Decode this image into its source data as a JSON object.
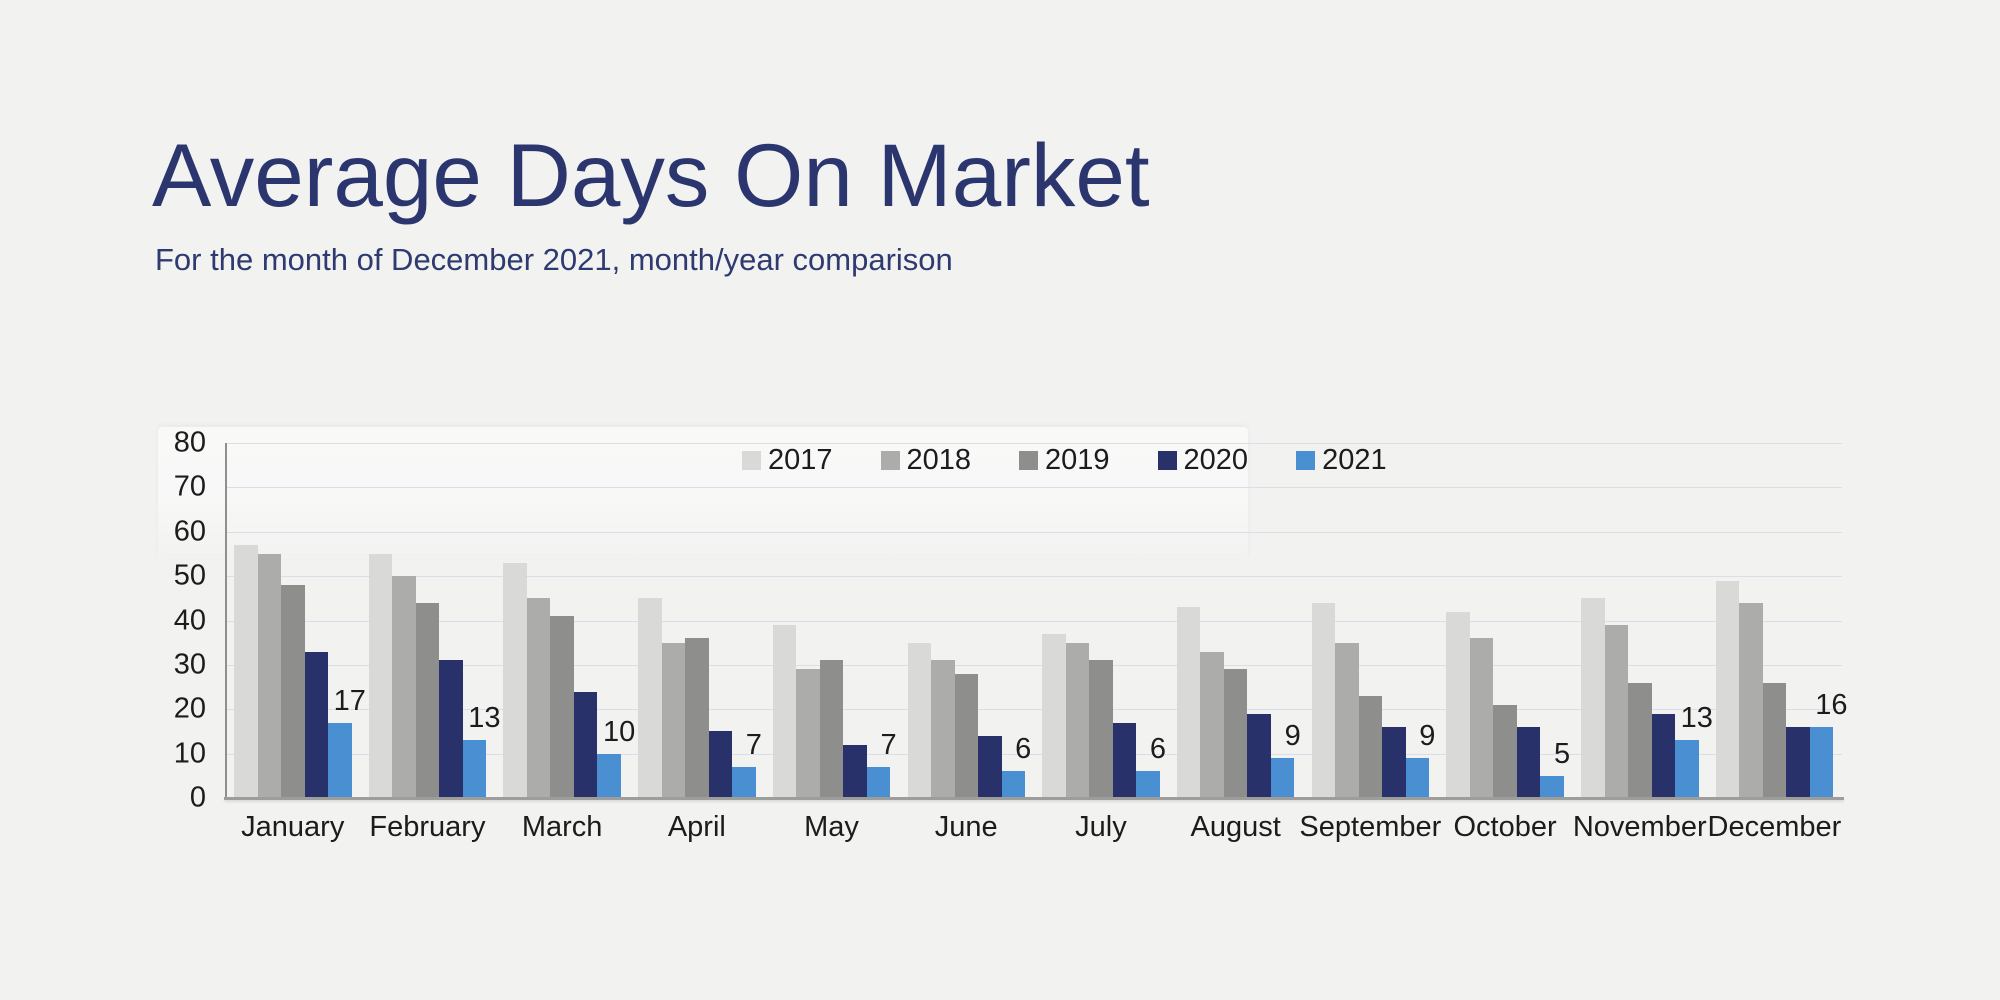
{
  "colors": {
    "background": "#f2f2f1",
    "title_text": "#2b356e",
    "subtitle_text": "#2e3a70",
    "axis_text": "#1c1c1c",
    "gridline": "#d9deea"
  },
  "header": {
    "title": "Average Days On Market",
    "subtitle": "For the month of December 2021, month/year comparison"
  },
  "chart_data": {
    "type": "bar",
    "title": "Average Days On Market",
    "subtitle": "For the month of December 2021, month/year comparison",
    "categories": [
      "January",
      "February",
      "March",
      "April",
      "May",
      "June",
      "July",
      "August",
      "September",
      "October",
      "November",
      "December"
    ],
    "series": [
      {
        "name": "2017",
        "color": "#d9d9d8",
        "values": [
          57,
          55,
          53,
          45,
          39,
          35,
          37,
          43,
          44,
          42,
          45,
          49
        ]
      },
      {
        "name": "2018",
        "color": "#acacab",
        "values": [
          55,
          50,
          45,
          35,
          29,
          31,
          35,
          33,
          35,
          36,
          39,
          44
        ]
      },
      {
        "name": "2019",
        "color": "#8e8e8d",
        "values": [
          48,
          44,
          41,
          36,
          31,
          28,
          31,
          29,
          23,
          21,
          26,
          26
        ]
      },
      {
        "name": "2020",
        "color": "#283169",
        "values": [
          33,
          31,
          24,
          15,
          12,
          14,
          17,
          19,
          16,
          16,
          19,
          16
        ]
      },
      {
        "name": "2021",
        "color": "#4a8fd1",
        "values": [
          17,
          13,
          10,
          7,
          7,
          6,
          6,
          9,
          9,
          5,
          13,
          16
        ],
        "data_labels": true
      }
    ],
    "xlabel": "",
    "ylabel": "",
    "ylim": [
      0,
      80
    ],
    "yticks": [
      0,
      10,
      20,
      30,
      40,
      50,
      60,
      70,
      80
    ],
    "grid": true,
    "legend_position": "top-center-inside"
  }
}
